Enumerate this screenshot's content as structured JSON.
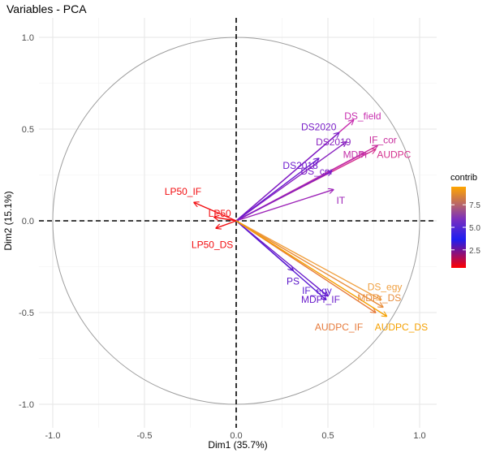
{
  "chart_data": {
    "type": "scatter",
    "subtype": "pca-variable-correlation-circle",
    "title": "Variables - PCA",
    "xlabel": "Dim1 (35.7%)",
    "ylabel": "Dim2 (15.1%)",
    "xlim": [
      -1.1,
      1.1
    ],
    "ylim": [
      -1.1,
      1.1
    ],
    "x_ticks": [
      "-1.0",
      "-0.5",
      "0.0",
      "0.5",
      "1.0"
    ],
    "y_ticks": [
      "-1.0",
      "-0.5",
      "0.0",
      "0.5",
      "1.0"
    ],
    "grid": true,
    "unit_circle": true,
    "reference_lines": "dashed at x=0 and y=0",
    "legend": {
      "title": "contrib",
      "position": "right",
      "ticks": [
        "7.5",
        "5.0",
        "2.5"
      ],
      "colors": [
        "#FFA500",
        "#7B2FBE",
        "#1E1EF0",
        "#FF0000"
      ]
    },
    "variables": [
      {
        "name": "DS_field",
        "x": 0.64,
        "y": 0.55,
        "contrib": 6.2,
        "color": "#C82FAF"
      },
      {
        "name": "DS2020",
        "x": 0.56,
        "y": 0.48,
        "contrib": 5.0,
        "color": "#7A1FC8"
      },
      {
        "name": "DS2019",
        "x": 0.6,
        "y": 0.43,
        "contrib": 5.2,
        "color": "#8A24C0"
      },
      {
        "name": "IF_cor",
        "x": 0.77,
        "y": 0.41,
        "contrib": 6.4,
        "color": "#C92F9E"
      },
      {
        "name": "AUDPC",
        "x": 0.76,
        "y": 0.39,
        "contrib": 6.6,
        "color": "#D5338E"
      },
      {
        "name": "MDPr",
        "x": 0.7,
        "y": 0.37,
        "contrib": 6.2,
        "color": "#C32FA8"
      },
      {
        "name": "DS2018",
        "x": 0.45,
        "y": 0.34,
        "contrib": 4.6,
        "color": "#6C1ACE"
      },
      {
        "name": "DS_cor",
        "x": 0.52,
        "y": 0.27,
        "contrib": 4.8,
        "color": "#7A1FC8"
      },
      {
        "name": "IT",
        "x": 0.53,
        "y": 0.17,
        "contrib": 5.2,
        "color": "#9D24B8"
      },
      {
        "name": "LP50_IF",
        "x": -0.23,
        "y": 0.1,
        "contrib": 0.9,
        "color": "#F20D10"
      },
      {
        "name": "LP50",
        "x": -0.12,
        "y": 0.02,
        "contrib": 0.5,
        "color": "#F20D10"
      },
      {
        "name": "LP50_DS",
        "x": -0.11,
        "y": -0.04,
        "contrib": 0.5,
        "color": "#F20D10"
      },
      {
        "name": "PS",
        "x": 0.31,
        "y": -0.27,
        "contrib": 4.2,
        "color": "#5B16C8"
      },
      {
        "name": "IF_egy",
        "x": 0.49,
        "y": -0.43,
        "contrib": 4.8,
        "color": "#5A1BD2"
      },
      {
        "name": "MDPr_IF",
        "x": 0.5,
        "y": -0.41,
        "contrib": 5.0,
        "color": "#6A1CCB"
      },
      {
        "name": "DS_egy",
        "x": 0.79,
        "y": -0.43,
        "contrib": 8.6,
        "color": "#F0A040"
      },
      {
        "name": "MDPr_DS",
        "x": 0.8,
        "y": -0.47,
        "contrib": 8.2,
        "color": "#E88C3A"
      },
      {
        "name": "AUDPC_IF",
        "x": 0.76,
        "y": -0.5,
        "contrib": 7.6,
        "color": "#E67A3A"
      },
      {
        "name": "AUDPC_DS",
        "x": 0.82,
        "y": -0.52,
        "contrib": 9.0,
        "color": "#F5A000"
      }
    ],
    "label_offsets": {
      "DS_field": [
        0.05,
        0.02
      ],
      "DS2020": [
        -0.11,
        0.03
      ],
      "DS2019": [
        -0.07,
        -0.0
      ],
      "IF_cor": [
        0.03,
        0.03
      ],
      "AUDPC": [
        0.1,
        -0.03
      ],
      "MDPr": [
        -0.05,
        -0.01
      ],
      "DS2018": [
        -0.1,
        -0.04
      ],
      "DS_cor": [
        -0.08,
        -0.0
      ],
      "IT": [
        0.04,
        -0.06
      ],
      "LP50_IF": [
        -0.06,
        0.06
      ],
      "LP50": [
        0.03,
        0.02
      ],
      "LP50_DS": [
        -0.02,
        -0.09
      ],
      "PS": [
        0.0,
        -0.06
      ],
      "IF_egy": [
        -0.05,
        0.05
      ],
      "MDPr_IF": [
        -0.04,
        -0.02
      ],
      "DS_egy": [
        0.02,
        0.07
      ],
      "MDPr_DS": [
        -0.02,
        0.05
      ],
      "AUDPC_IF": [
        -0.2,
        -0.08
      ],
      "AUDPC_DS": [
        0.08,
        -0.06
      ]
    }
  }
}
